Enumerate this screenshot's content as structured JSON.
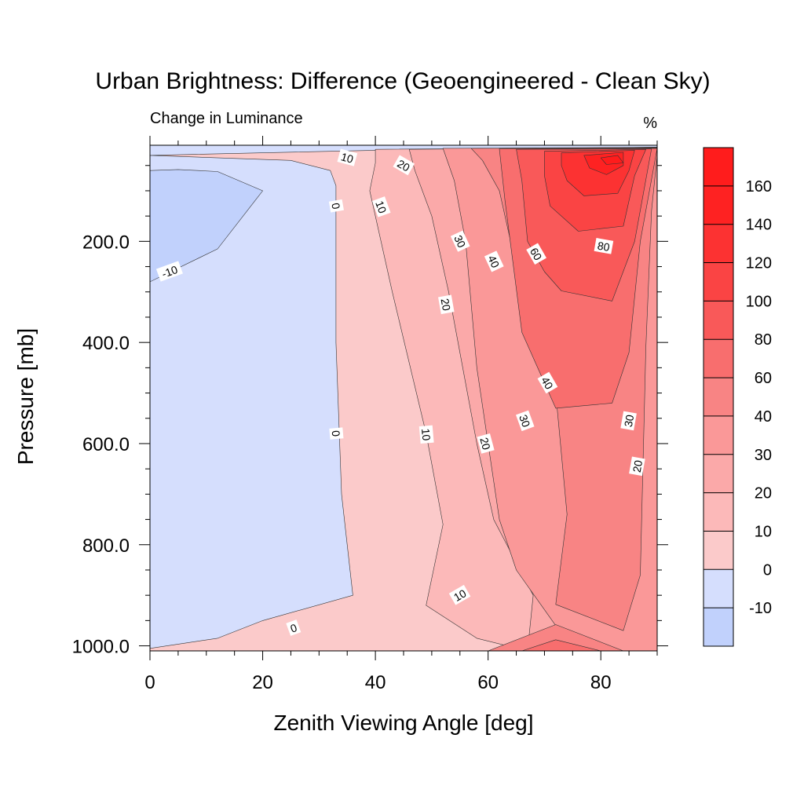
{
  "chart_data": {
    "type": "heatmap",
    "subtype": "filled-contour",
    "title": "Urban Brightness: Difference (Geoengineered - Clean Sky)",
    "left_subtitle": "Change in Luminance",
    "units": "%",
    "xlabel": "Zenith Viewing Angle [deg]",
    "ylabel": "Pressure [mb]",
    "xlim": [
      0,
      90
    ],
    "ylim": [
      1010,
      10
    ],
    "y_reversed": true,
    "x_ticks": [
      0,
      20,
      40,
      60,
      80
    ],
    "x_tick_labels": [
      "0",
      "20",
      "40",
      "60",
      "80"
    ],
    "y_ticks": [
      200,
      400,
      600,
      800,
      1000
    ],
    "y_tick_labels": [
      "200.0",
      "400.0",
      "600.0",
      "800.0",
      "1000.0"
    ],
    "contour_levels": [
      -10,
      0,
      10,
      20,
      30,
      40,
      60,
      80,
      100,
      120,
      140,
      160
    ],
    "colorbar": {
      "labels": [
        "-10",
        "0",
        "10",
        "20",
        "30",
        "40",
        "60",
        "80",
        "100",
        "120",
        "140",
        "160"
      ],
      "colors": [
        "#c1d1fc",
        "#d5defd",
        "#fbcaca",
        "#fcb9b9",
        "#fba9a9",
        "#fa9898",
        "#f88484",
        "#f86e6e",
        "#f95959",
        "#fa4444",
        "#fc3232",
        "#fe2222",
        "#ff1c1c"
      ]
    },
    "grid": false,
    "legend": "colorbar-right",
    "regions": [
      {
        "level": "0 to 10",
        "color": "#fbcaca",
        "polygon": [
          [
            0,
            1010
          ],
          [
            90,
            1010
          ],
          [
            90,
            10
          ],
          [
            0,
            10
          ]
        ]
      },
      {
        "level": "-10 to 0",
        "color": "#d5defd",
        "polygon": [
          [
            0,
            10
          ],
          [
            90,
            10
          ],
          [
            90,
            14
          ],
          [
            60,
            18
          ],
          [
            40,
            20
          ],
          [
            0,
            30
          ],
          [
            25,
            40
          ],
          [
            32,
            60
          ],
          [
            33,
            90
          ],
          [
            33,
            200
          ],
          [
            33,
            400
          ],
          [
            34,
            700
          ],
          [
            36,
            900
          ],
          [
            20,
            950
          ],
          [
            12,
            985
          ],
          [
            0,
            1005
          ]
        ]
      },
      {
        "level": "-10 to 0",
        "color": "#c1d1fc",
        "polygon": [
          [
            0,
            60
          ],
          [
            5,
            58
          ],
          [
            12,
            62
          ],
          [
            20,
            100
          ],
          [
            12,
            215
          ],
          [
            0,
            280
          ]
        ]
      },
      {
        "level": "10 to 20",
        "color": "#fcb9b9",
        "polygon": [
          [
            40,
            18
          ],
          [
            90,
            14
          ],
          [
            90,
            1010
          ],
          [
            67,
            1010
          ],
          [
            58,
            985
          ],
          [
            49,
            920
          ],
          [
            52,
            760
          ],
          [
            49,
            580
          ],
          [
            43,
            300
          ],
          [
            39,
            100
          ],
          [
            40,
            45
          ]
        ]
      },
      {
        "level": "20 to 30",
        "color": "#fba9a9",
        "polygon": [
          [
            46,
            18
          ],
          [
            90,
            14
          ],
          [
            90,
            1010
          ],
          [
            67,
            1010
          ],
          [
            68,
            900
          ],
          [
            61,
            750
          ],
          [
            58,
            600
          ],
          [
            53,
            300
          ],
          [
            50,
            150
          ],
          [
            47,
            60
          ]
        ]
      },
      {
        "level": "30 to 40",
        "color": "#fa9898",
        "polygon": [
          [
            52,
            16
          ],
          [
            90,
            14
          ],
          [
            90,
            1010
          ],
          [
            77,
            1010
          ],
          [
            72,
            960
          ],
          [
            65,
            850
          ],
          [
            62,
            750
          ],
          [
            58,
            450
          ],
          [
            56,
            200
          ],
          [
            54,
            80
          ]
        ]
      },
      {
        "level": "40 to 60",
        "color": "#f88484",
        "polygon": [
          [
            57,
            16
          ],
          [
            90,
            15
          ],
          [
            90,
            30
          ],
          [
            89,
            140
          ],
          [
            88,
            410
          ],
          [
            87,
            860
          ],
          [
            84,
            970
          ],
          [
            72,
            918
          ],
          [
            74,
            740
          ],
          [
            72,
            500
          ],
          [
            66,
            300
          ],
          [
            62,
            100
          ],
          [
            59,
            40
          ]
        ]
      },
      {
        "level": "40 to 60",
        "color": "#f88484",
        "polygon": [
          [
            60,
            1010
          ],
          [
            72,
            958
          ],
          [
            84,
            1010
          ]
        ]
      },
      {
        "level": "60 to 80",
        "color": "#f86e6e",
        "polygon": [
          [
            62,
            17
          ],
          [
            90,
            16
          ],
          [
            87,
            200
          ],
          [
            85,
            420
          ],
          [
            82,
            520
          ],
          [
            72,
            530
          ],
          [
            66,
            380
          ],
          [
            63,
            120
          ]
        ]
      },
      {
        "level": "60 to 80",
        "color": "#f86e6e",
        "polygon": [
          [
            66,
            1010
          ],
          [
            72,
            988
          ],
          [
            80,
            1010
          ]
        ]
      },
      {
        "level": "80 to 100",
        "color": "#f95959",
        "polygon": [
          [
            65,
            18
          ],
          [
            89,
            17
          ],
          [
            86,
            200
          ],
          [
            82,
            318
          ],
          [
            73,
            298
          ],
          [
            70,
            260
          ],
          [
            67,
            200
          ],
          [
            66,
            80
          ]
        ]
      },
      {
        "level": "100 to 120",
        "color": "#fa4444",
        "polygon": [
          [
            70,
            22
          ],
          [
            88,
            18
          ],
          [
            86,
            70
          ],
          [
            84,
            170
          ],
          [
            76,
            180
          ],
          [
            71,
            130
          ],
          [
            70,
            70
          ]
        ]
      },
      {
        "level": "120 to 140",
        "color": "#fc3232",
        "polygon": [
          [
            73,
            25
          ],
          [
            86,
            20
          ],
          [
            85,
            60
          ],
          [
            83,
            105
          ],
          [
            77,
            110
          ],
          [
            74,
            80
          ],
          [
            73,
            50
          ]
        ]
      },
      {
        "level": "140 to 160",
        "color": "#fe2222",
        "polygon": [
          [
            77,
            30
          ],
          [
            84,
            24
          ],
          [
            84,
            50
          ],
          [
            81,
            68
          ],
          [
            78,
            55
          ]
        ]
      },
      {
        "level": "160+",
        "color": "#ff1c1c",
        "polygon": [
          [
            80,
            35
          ],
          [
            83,
            30
          ],
          [
            84,
            45
          ],
          [
            81,
            48
          ]
        ]
      }
    ],
    "contour_labels": [
      {
        "text": "10",
        "x": 35,
        "y": 35,
        "angle": 15
      },
      {
        "text": "20",
        "x": 45,
        "y": 50,
        "angle": 30
      },
      {
        "text": "0",
        "x": 33,
        "y": 130,
        "angle": 80
      },
      {
        "text": "10",
        "x": 41,
        "y": 132,
        "angle": 70
      },
      {
        "text": "-10",
        "x": 3.5,
        "y": 260,
        "angle": -20
      },
      {
        "text": "30",
        "x": 55,
        "y": 200,
        "angle": 65
      },
      {
        "text": "40",
        "x": 61,
        "y": 240,
        "angle": 65
      },
      {
        "text": "60",
        "x": 68.5,
        "y": 225,
        "angle": 60
      },
      {
        "text": "80",
        "x": 80.5,
        "y": 210,
        "angle": 10
      },
      {
        "text": "20",
        "x": 52.5,
        "y": 325,
        "angle": 80
      },
      {
        "text": "40",
        "x": 70.5,
        "y": 480,
        "angle": 60
      },
      {
        "text": "0",
        "x": 33,
        "y": 580,
        "angle": 85
      },
      {
        "text": "10",
        "x": 49,
        "y": 582,
        "angle": 85
      },
      {
        "text": "20",
        "x": 59.5,
        "y": 600,
        "angle": 75
      },
      {
        "text": "30",
        "x": 66.5,
        "y": 555,
        "angle": 70
      },
      {
        "text": "30",
        "x": 85,
        "y": 555,
        "angle": -80
      },
      {
        "text": "20",
        "x": 86.5,
        "y": 645,
        "angle": -80
      },
      {
        "text": "10",
        "x": 55,
        "y": 900,
        "angle": -30
      },
      {
        "text": "0",
        "x": 25.5,
        "y": 965,
        "angle": -20
      }
    ]
  }
}
